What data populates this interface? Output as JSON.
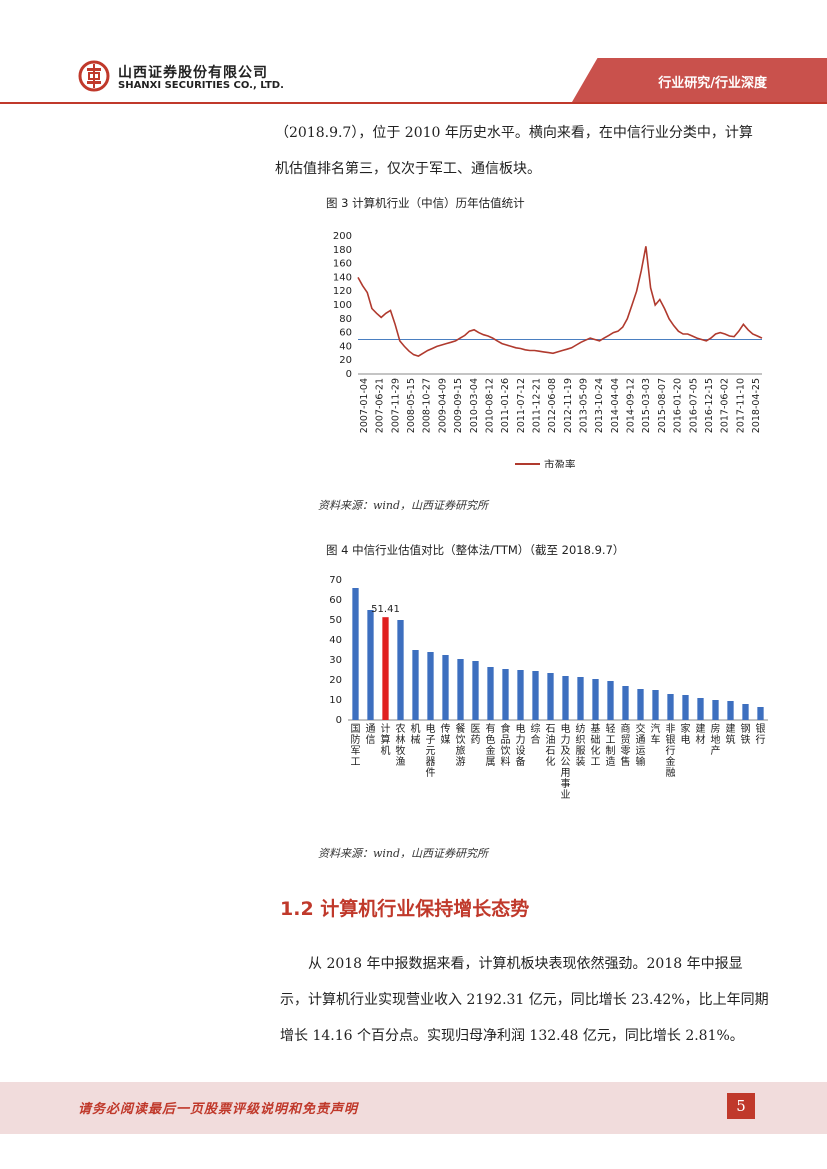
{
  "header": {
    "company_cn": "山西证券股份有限公司",
    "company_en": "SHANXI SECURITIES CO., LTD.",
    "section_label": "行业研究/行业深度"
  },
  "text": {
    "para_top": "（2018.9.7），位于 2010 年历史水平。横向来看，在中信行业分类中，计算机估值排名第三，仅次于军工、通信板块。",
    "section_heading": "1.2  计算机行业保持增长态势",
    "para_bottom": "从 2018 年中报数据来看，计算机板块表现依然强劲。2018 年中报显示，计算机行业实现营业收入 2192.31 亿元，同比增长 23.42%，比上年同期增长 14.16 个百分点。实现归母净利润 132.48 亿元，同比增长 2.81%。"
  },
  "figures": {
    "fig3_title": "图 3  计算机行业（中信）历年估值统计",
    "fig4_title": "图 4  中信行业估值对比（整体法/TTM）（截至 2018.9.7）",
    "source1": "资料来源：wind，山西证券研究所",
    "source2": "资料来源：wind，山西证券研究所"
  },
  "footer": {
    "disclaimer": "请务必阅读最后一页股票评级说明和免责声明",
    "page_number": "5"
  },
  "colors": {
    "brand_red": "#c0392b",
    "line_series": "#b03a2e",
    "avg_line": "#4a7fc1",
    "bar_default": "#3d6fbf",
    "bar_highlight": "#e02020"
  },
  "chart_data": [
    {
      "type": "line",
      "title": "",
      "legend": [
        "市盈率"
      ],
      "legend_position": "bottom",
      "ylim": [
        0,
        200
      ],
      "yticks": [
        0,
        20,
        40,
        60,
        80,
        100,
        120,
        140,
        160,
        180,
        200
      ],
      "x_tick_labels": [
        "2007-01-04",
        "2007-06-21",
        "2007-11-29",
        "2008-05-15",
        "2008-10-27",
        "2009-04-09",
        "2009-09-15",
        "2010-03-04",
        "2010-08-12",
        "2011-01-26",
        "2011-07-12",
        "2011-12-21",
        "2012-06-08",
        "2012-11-19",
        "2013-05-09",
        "2013-10-24",
        "2014-04-04",
        "2014-09-12",
        "2015-03-03",
        "2015-08-07",
        "2016-01-20",
        "2016-07-05",
        "2016-12-15",
        "2017-06-02",
        "2017-11-10",
        "2018-04-25"
      ],
      "average_line": 50,
      "series": [
        {
          "name": "市盈率",
          "values": [
            140,
            128,
            118,
            95,
            88,
            82,
            88,
            92,
            72,
            48,
            40,
            33,
            28,
            26,
            30,
            34,
            37,
            40,
            42,
            44,
            46,
            48,
            52,
            56,
            62,
            64,
            60,
            57,
            55,
            52,
            48,
            44,
            42,
            40,
            38,
            37,
            35,
            34,
            34,
            33,
            32,
            31,
            30,
            32,
            34,
            36,
            38,
            42,
            46,
            49,
            52,
            50,
            48,
            52,
            56,
            60,
            62,
            68,
            80,
            100,
            120,
            150,
            185,
            125,
            100,
            108,
            95,
            80,
            70,
            62,
            58,
            58,
            55,
            52,
            50,
            48,
            52,
            58,
            60,
            58,
            55,
            54,
            62,
            72,
            64,
            58,
            55,
            52
          ]
        }
      ]
    },
    {
      "type": "bar",
      "title": "",
      "ylim": [
        0,
        70
      ],
      "yticks": [
        0,
        10,
        20,
        30,
        40,
        50,
        60,
        70
      ],
      "categories": [
        "国防军工",
        "通信",
        "计算机",
        "农林牧渔",
        "机械",
        "电子元器件",
        "传媒",
        "餐饮旅游",
        "医药",
        "有色金属",
        "食品饮料",
        "电力设备",
        "综合",
        "石油石化",
        "电力及公用事业",
        "纺织服装",
        "基础化工",
        "轻工制造",
        "商贸零售",
        "交通运输",
        "汽车",
        "非银行金融",
        "家电",
        "建材",
        "房地产",
        "建筑",
        "钢铁",
        "银行"
      ],
      "values": [
        66,
        55,
        51.41,
        50,
        35,
        34,
        32.5,
        30.5,
        29.5,
        26.5,
        25.5,
        25,
        24.5,
        23.5,
        22,
        21.5,
        20.5,
        19.5,
        17,
        15.5,
        15,
        13,
        12.5,
        11,
        10,
        9.5,
        8,
        6.5
      ],
      "highlight_index": 2,
      "data_labels": [
        {
          "index": 2,
          "text": "51.41"
        }
      ]
    }
  ]
}
